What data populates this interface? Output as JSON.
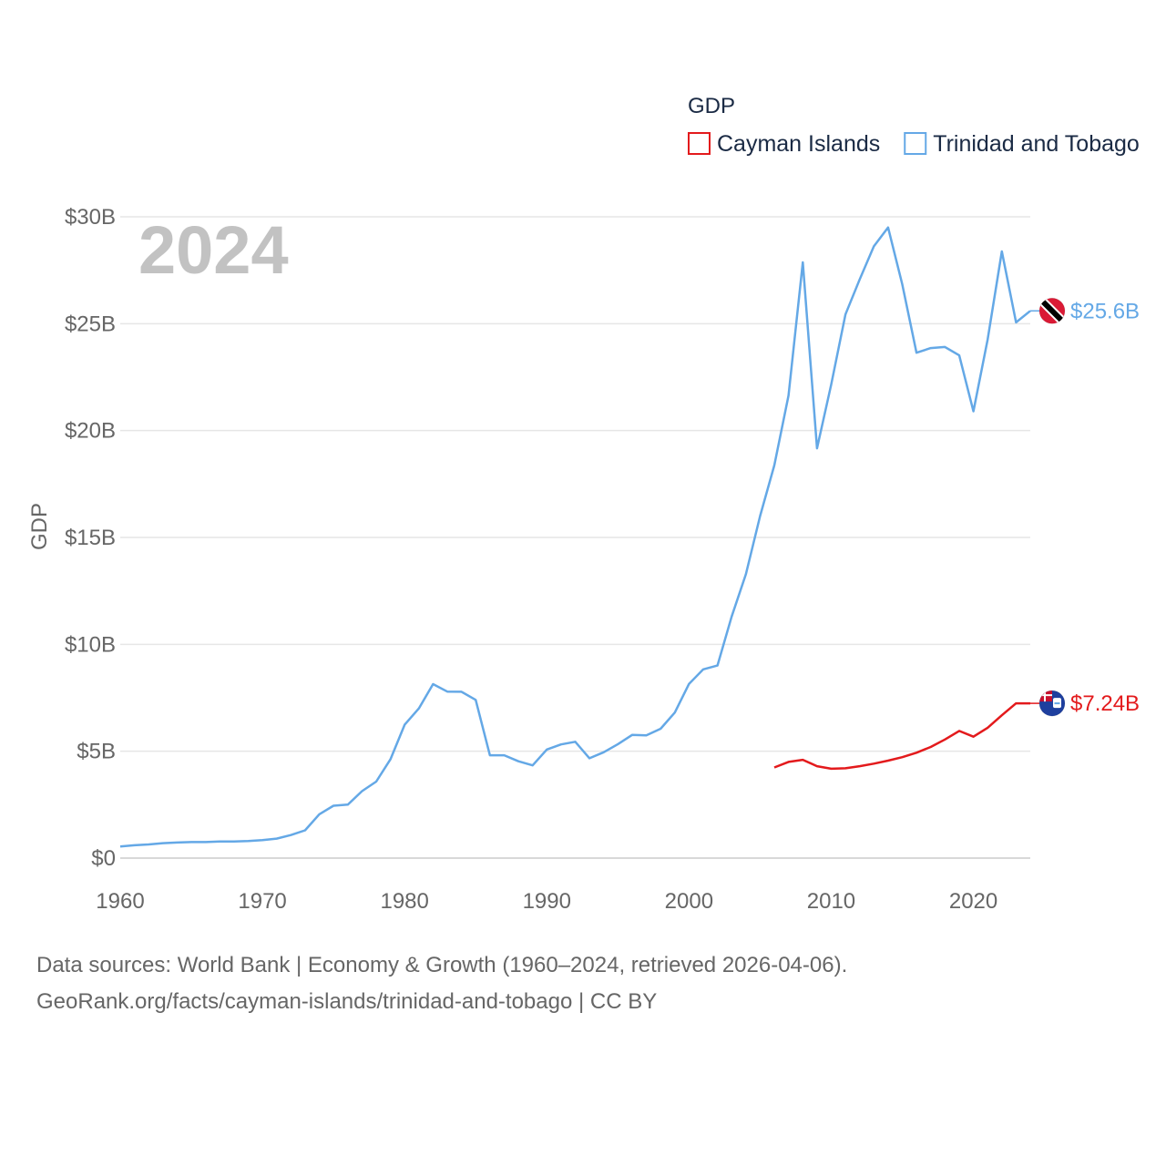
{
  "chart_data": {
    "type": "line",
    "legend_title": "GDP",
    "year_label": "2024",
    "ylabel": "GDP",
    "xlim": [
      1960,
      2024
    ],
    "ylim": [
      0,
      30
    ],
    "x_ticks": [
      {
        "value": 1960,
        "label": "1960"
      },
      {
        "value": 1970,
        "label": "1970"
      },
      {
        "value": 1980,
        "label": "1980"
      },
      {
        "value": 1990,
        "label": "1990"
      },
      {
        "value": 2000,
        "label": "2000"
      },
      {
        "value": 2010,
        "label": "2010"
      },
      {
        "value": 2020,
        "label": "2020"
      }
    ],
    "y_ticks": [
      {
        "value": 0,
        "label": "$0"
      },
      {
        "value": 5,
        "label": "$5B"
      },
      {
        "value": 10,
        "label": "$10B"
      },
      {
        "value": 15,
        "label": "$15B"
      },
      {
        "value": 20,
        "label": "$20B"
      },
      {
        "value": 25,
        "label": "$25B"
      },
      {
        "value": 30,
        "label": "$30B"
      }
    ],
    "series": [
      {
        "name": "Cayman Islands",
        "color": "#e31a1c",
        "end_label": "$7.24B",
        "flag": "cayman-islands-flag-icon",
        "x": [
          2006,
          2007,
          2008,
          2009,
          2010,
          2011,
          2012,
          2013,
          2014,
          2015,
          2016,
          2017,
          2018,
          2019,
          2020,
          2021,
          2022,
          2023,
          2024
        ],
        "values": [
          4.24,
          4.5,
          4.6,
          4.3,
          4.18,
          4.2,
          4.3,
          4.42,
          4.56,
          4.72,
          4.93,
          5.2,
          5.55,
          5.95,
          5.68,
          6.1,
          6.68,
          7.24,
          7.24
        ]
      },
      {
        "name": "Trinidad and Tobago",
        "color": "#64a8e6",
        "end_label": "$25.6B",
        "flag": "trinidad-and-tobago-flag-icon",
        "x": [
          1960,
          1961,
          1962,
          1963,
          1964,
          1965,
          1966,
          1967,
          1968,
          1969,
          1970,
          1971,
          1972,
          1973,
          1974,
          1975,
          1976,
          1977,
          1978,
          1979,
          1980,
          1981,
          1982,
          1983,
          1984,
          1985,
          1986,
          1987,
          1988,
          1989,
          1990,
          1991,
          1992,
          1993,
          1994,
          1995,
          1996,
          1997,
          1998,
          1999,
          2000,
          2001,
          2002,
          2003,
          2004,
          2005,
          2006,
          2007,
          2008,
          2009,
          2010,
          2011,
          2012,
          2013,
          2014,
          2015,
          2016,
          2017,
          2018,
          2019,
          2020,
          2021,
          2022,
          2023,
          2024
        ],
        "values": [
          0.54,
          0.6,
          0.64,
          0.7,
          0.73,
          0.75,
          0.75,
          0.78,
          0.78,
          0.8,
          0.84,
          0.91,
          1.08,
          1.3,
          2.05,
          2.45,
          2.5,
          3.13,
          3.58,
          4.62,
          6.24,
          7.0,
          8.14,
          7.79,
          7.78,
          7.4,
          4.81,
          4.81,
          4.53,
          4.34,
          5.08,
          5.32,
          5.44,
          4.67,
          4.95,
          5.33,
          5.76,
          5.74,
          6.05,
          6.81,
          8.15,
          8.83,
          9.01,
          11.3,
          13.28,
          16.0,
          18.37,
          21.64,
          27.87,
          19.17,
          22.16,
          25.43,
          27.07,
          28.62,
          29.5,
          26.84,
          23.64,
          23.86,
          23.91,
          23.52,
          20.9,
          24.26,
          28.38,
          25.06,
          25.6
        ]
      }
    ]
  },
  "footer": {
    "line1": "Data sources: World Bank | Economy & Growth (1960–2024, retrieved 2026-04-06).",
    "line2": "GeoRank.org/facts/cayman-islands/trinidad-and-tobago | CC BY"
  }
}
